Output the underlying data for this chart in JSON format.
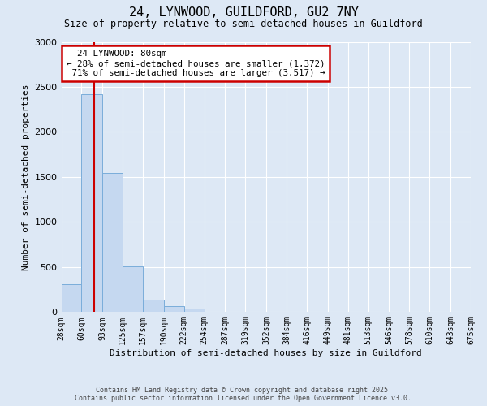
{
  "title_line1": "24, LYNWOOD, GUILDFORD, GU2 7NY",
  "title_line2": "Size of property relative to semi-detached houses in Guildford",
  "xlabel": "Distribution of semi-detached houses by size in Guildford",
  "ylabel": "Number of semi-detached properties",
  "property_size": 80,
  "property_label": "24 LYNWOOD: 80sqm",
  "pct_smaller": 28,
  "count_smaller": 1372,
  "pct_larger": 71,
  "count_larger": 3517,
  "bin_edges": [
    28,
    60,
    93,
    125,
    157,
    190,
    222,
    254,
    287,
    319,
    352,
    384,
    416,
    449,
    481,
    513,
    546,
    578,
    610,
    643,
    675
  ],
  "bin_heights": [
    305,
    2420,
    1545,
    510,
    140,
    65,
    38,
    5,
    2,
    1,
    1,
    0,
    0,
    0,
    0,
    0,
    0,
    0,
    0,
    0
  ],
  "bar_color": "#c5d8f0",
  "bar_edge_color": "#7aadda",
  "red_line_color": "#cc0000",
  "annotation_box_color": "#cc0000",
  "background_color": "#dde8f5",
  "grid_color": "#ffffff",
  "ylim": [
    0,
    3000
  ],
  "yticks": [
    0,
    500,
    1000,
    1500,
    2000,
    2500,
    3000
  ],
  "footer_line1": "Contains HM Land Registry data © Crown copyright and database right 2025.",
  "footer_line2": "Contains public sector information licensed under the Open Government Licence v3.0."
}
